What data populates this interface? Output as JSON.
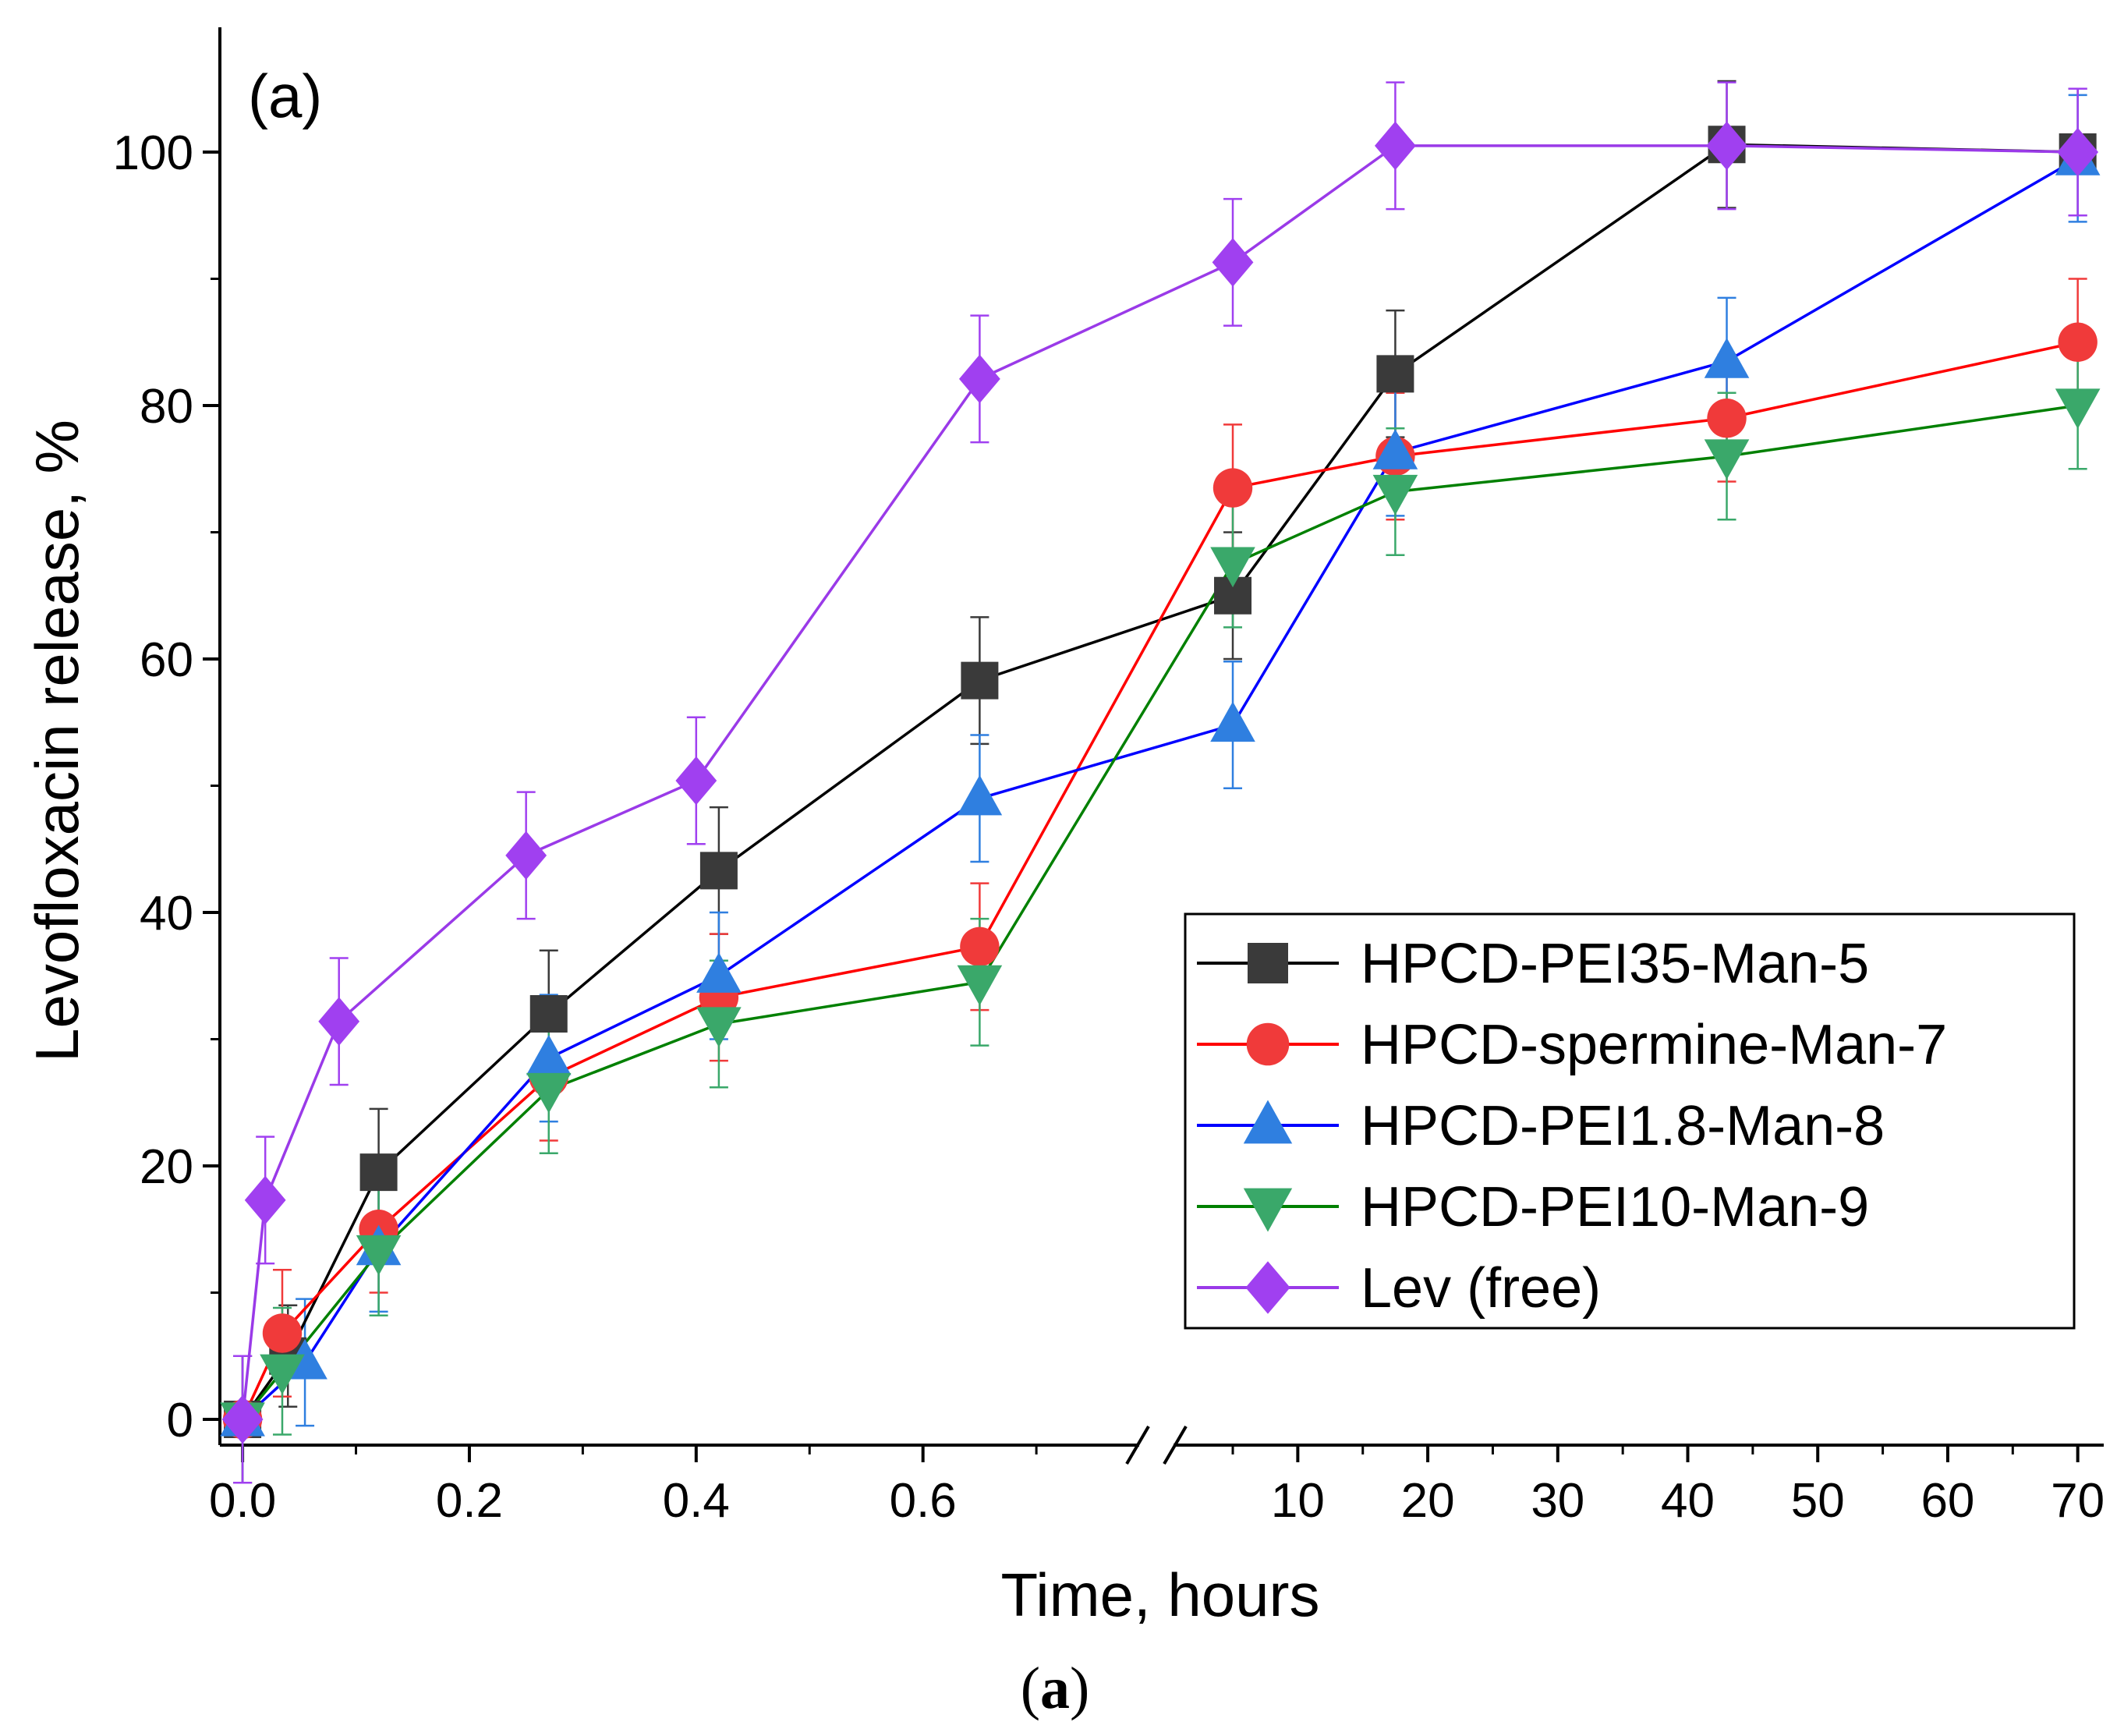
{
  "chart_data": {
    "type": "line",
    "panel_label": "(a)",
    "caption_open": "(",
    "caption_letter": "a",
    "caption_close": ")",
    "xlabel": "Time, hours",
    "ylabel": "Levofloxacin release, %",
    "ylim": [
      0,
      110
    ],
    "y_ticks": [
      0,
      20,
      40,
      60,
      80,
      100
    ],
    "y_tick_labels": [
      "0",
      "20",
      "40",
      "60",
      "80",
      "100"
    ],
    "x_axis_break": true,
    "x_segments": [
      {
        "range": [
          -0.02,
          0.79
        ],
        "ticks": [
          0.0,
          0.2,
          0.4,
          0.6
        ],
        "tick_labels": [
          "0.0",
          "0.2",
          "0.4",
          "0.6"
        ]
      },
      {
        "range": [
          0.5,
          72
        ],
        "ticks": [
          10,
          20,
          30,
          40,
          50,
          60,
          70
        ],
        "tick_labels": [
          "10",
          "20",
          "30",
          "40",
          "50",
          "60",
          "70"
        ]
      }
    ],
    "legend_position": "bottom-right",
    "series": [
      {
        "name": "HPCD-PEI35-Man-5",
        "color": "#3a3a3a",
        "line_color": "#000000",
        "marker": "square",
        "points": [
          {
            "x": 0,
            "y": 0,
            "err": 5
          },
          {
            "x": 0.04,
            "y": 5,
            "err": 4
          },
          {
            "x": 0.12,
            "y": 19.5,
            "err": 5
          },
          {
            "x": 0.27,
            "y": 32,
            "err": 5
          },
          {
            "x": 0.42,
            "y": 43.3,
            "err": 5
          },
          {
            "x": 0.65,
            "y": 58.3,
            "err": 5
          },
          {
            "x": 5,
            "y": 65,
            "err": 5
          },
          {
            "x": 17.5,
            "y": 82.5,
            "err": 5
          },
          {
            "x": 43,
            "y": 100.6,
            "err": 5
          },
          {
            "x": 70,
            "y": 100,
            "err": 5
          }
        ]
      },
      {
        "name": "HPCD-spermine-Man-7",
        "color": "#f03a3a",
        "line_color": "#ff0000",
        "marker": "circle",
        "points": [
          {
            "x": 0,
            "y": 0,
            "err": 5
          },
          {
            "x": 0.035,
            "y": 6.8,
            "err": 5
          },
          {
            "x": 0.12,
            "y": 15,
            "err": 5
          },
          {
            "x": 0.27,
            "y": 27,
            "err": 5
          },
          {
            "x": 0.42,
            "y": 33.3,
            "err": 5
          },
          {
            "x": 0.65,
            "y": 37.3,
            "err": 5
          },
          {
            "x": 5,
            "y": 73.5,
            "err": 5
          },
          {
            "x": 17.5,
            "y": 76,
            "err": 5
          },
          {
            "x": 43,
            "y": 79,
            "err": 5
          },
          {
            "x": 70,
            "y": 85,
            "err": 5
          }
        ]
      },
      {
        "name": "HPCD-PEI1.8-Man-8",
        "color": "#2f7fe0",
        "line_color": "#0000ff",
        "marker": "triangle-up",
        "points": [
          {
            "x": 0,
            "y": 0,
            "err": 5
          },
          {
            "x": 0.055,
            "y": 4.5,
            "err": 5
          },
          {
            "x": 0.12,
            "y": 13.5,
            "err": 5
          },
          {
            "x": 0.27,
            "y": 28.5,
            "err": 5
          },
          {
            "x": 0.42,
            "y": 35,
            "err": 5
          },
          {
            "x": 0.65,
            "y": 49,
            "err": 5
          },
          {
            "x": 5,
            "y": 54.8,
            "err": 5
          },
          {
            "x": 17.5,
            "y": 76.3,
            "err": 5
          },
          {
            "x": 43,
            "y": 83.5,
            "err": 5
          },
          {
            "x": 70,
            "y": 99.5,
            "err": 5
          }
        ]
      },
      {
        "name": "HPCD-PEI10-Man-9",
        "color": "#3aa86a",
        "line_color": "#008000",
        "marker": "triangle-down",
        "points": [
          {
            "x": 0,
            "y": 0,
            "err": 5
          },
          {
            "x": 0.035,
            "y": 3.8,
            "err": 5
          },
          {
            "x": 0.12,
            "y": 13.2,
            "err": 5
          },
          {
            "x": 0.27,
            "y": 26,
            "err": 5
          },
          {
            "x": 0.42,
            "y": 31.2,
            "err": 5
          },
          {
            "x": 0.65,
            "y": 34.5,
            "err": 5
          },
          {
            "x": 5,
            "y": 67.5,
            "err": 5
          },
          {
            "x": 17.5,
            "y": 73.2,
            "err": 5
          },
          {
            "x": 43,
            "y": 76,
            "err": 5
          },
          {
            "x": 70,
            "y": 80,
            "err": 5
          }
        ]
      },
      {
        "name": "Lev (free)",
        "color": "#a040f0",
        "line_color": "#9a3ae8",
        "marker": "diamond",
        "points": [
          {
            "x": 0,
            "y": 0,
            "err": 5
          },
          {
            "x": 0.02,
            "y": 17.3,
            "err": 5
          },
          {
            "x": 0.085,
            "y": 31.4,
            "err": 5
          },
          {
            "x": 0.25,
            "y": 44.5,
            "err": 5
          },
          {
            "x": 0.4,
            "y": 50.4,
            "err": 5
          },
          {
            "x": 0.65,
            "y": 82.1,
            "err": 5
          },
          {
            "x": 5,
            "y": 91.3,
            "err": 5
          },
          {
            "x": 17.5,
            "y": 100.5,
            "err": 5
          },
          {
            "x": 43,
            "y": 100.5,
            "err": 5
          },
          {
            "x": 70,
            "y": 100,
            "err": 5
          }
        ]
      }
    ]
  }
}
